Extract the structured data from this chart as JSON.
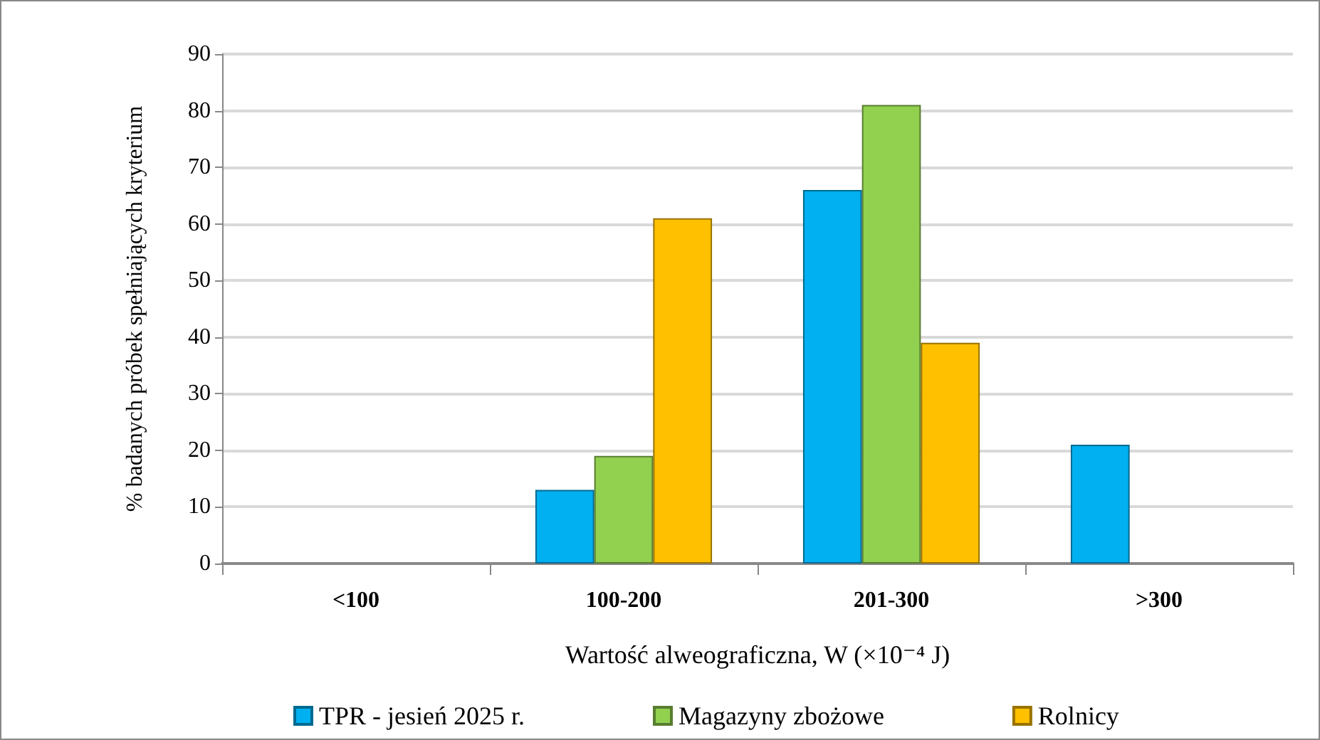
{
  "chart_data": {
    "type": "bar",
    "xlabel": "Wartość alweograficzna, W (×10⁻⁴ J)",
    "ylabel": "% badanych próbek spełniających kryterium",
    "categories": [
      "<100",
      "100-200",
      "201-300",
      ">300"
    ],
    "series": [
      {
        "name": "TPR - jesień 2025 r.",
        "color": "#00b0f0",
        "values": [
          0,
          13,
          66,
          21
        ]
      },
      {
        "name": "Magazyny zbożowe",
        "color": "#92d050",
        "values": [
          0,
          19,
          81,
          0
        ]
      },
      {
        "name": "Rolnicy",
        "color": "#ffc000",
        "values": [
          0,
          61,
          39,
          0
        ]
      }
    ],
    "ylim": [
      0,
      90
    ],
    "yticks": [
      0,
      10,
      20,
      30,
      40,
      50,
      60,
      70,
      80,
      90
    ],
    "grid": "y",
    "legend": "bottom"
  }
}
